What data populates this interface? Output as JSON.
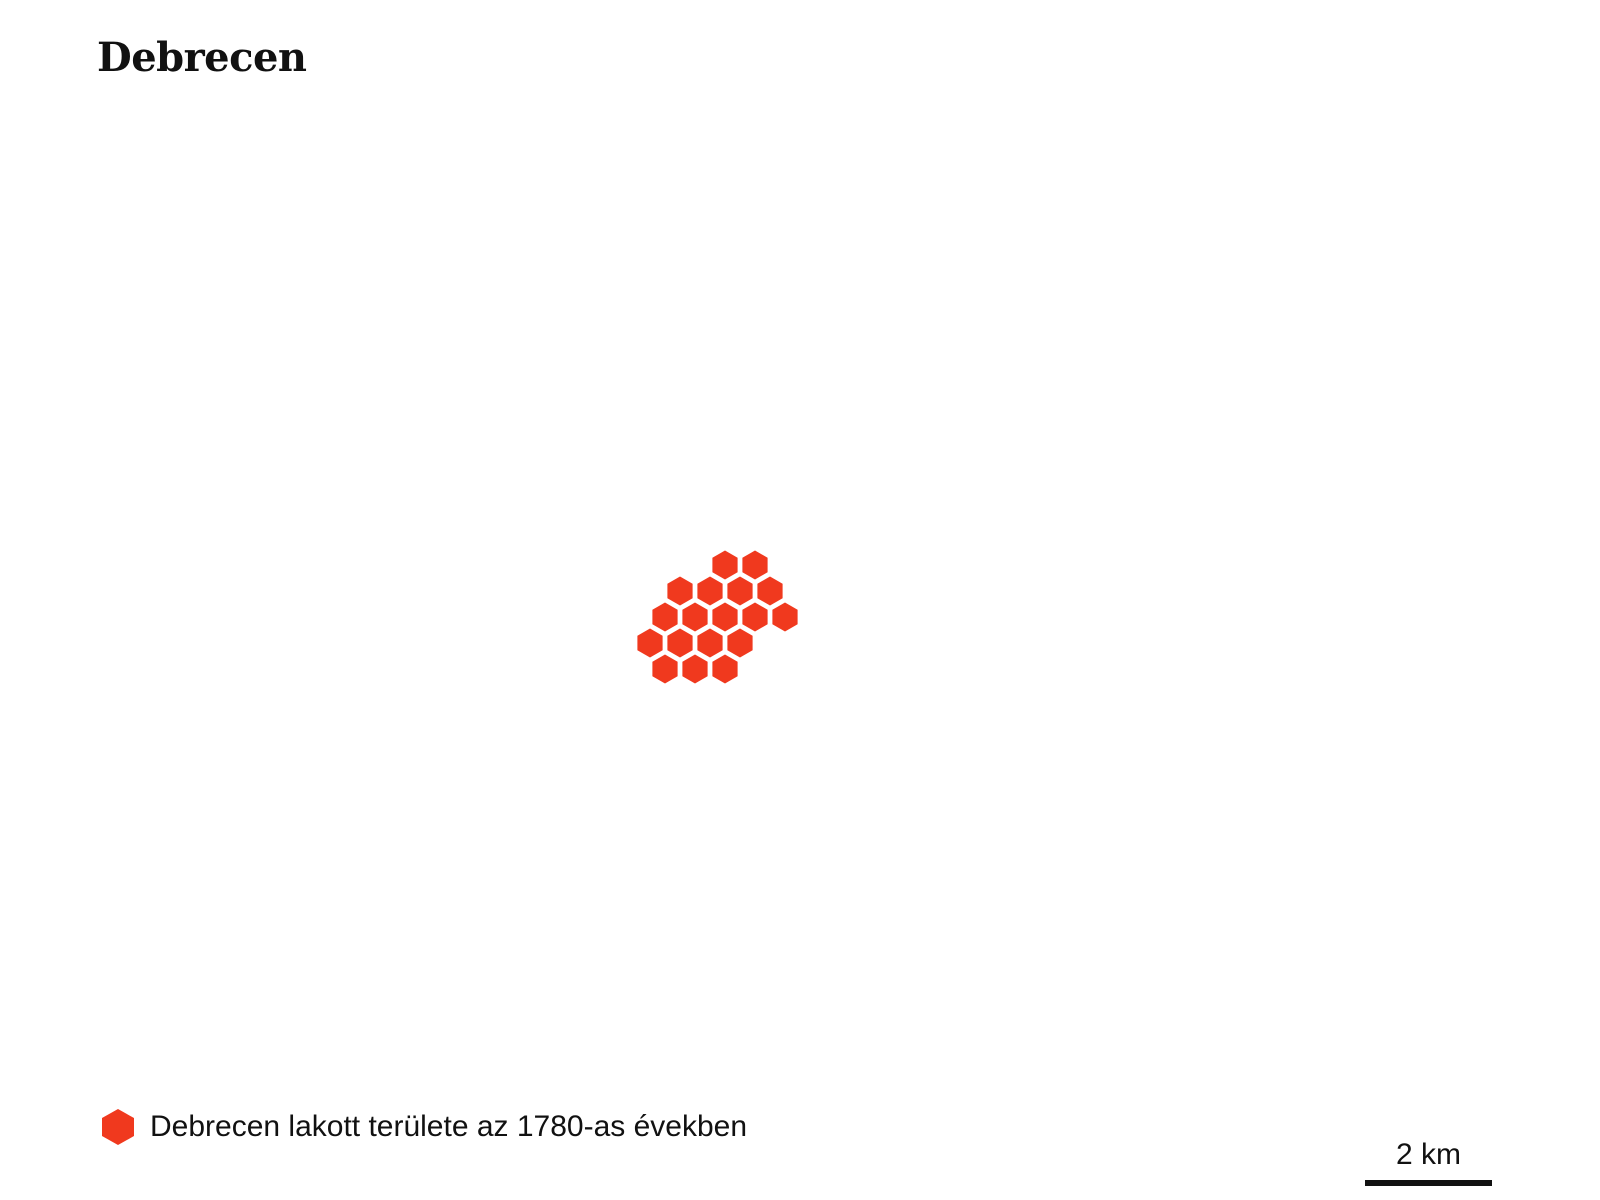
{
  "title": "Debrecen",
  "legend": {
    "label": "Debrecen lakott területe az 1780-as években",
    "icon": "hexagon-icon",
    "color": "#f0391e"
  },
  "scale": {
    "label": "2 km"
  },
  "map": {
    "settlement_cells": [
      {
        "q": 0,
        "r": 0
      },
      {
        "q": 1,
        "r": 0
      },
      {
        "q": -1,
        "r": 1
      },
      {
        "q": 0,
        "r": 1
      },
      {
        "q": 1,
        "r": 1
      },
      {
        "q": 2,
        "r": 1
      },
      {
        "q": -2,
        "r": 2
      },
      {
        "q": -1,
        "r": 2
      },
      {
        "q": 0,
        "r": 2
      },
      {
        "q": 1,
        "r": 2
      },
      {
        "q": 2,
        "r": 2
      },
      {
        "q": -2,
        "r": 3
      },
      {
        "q": -1,
        "r": 3
      },
      {
        "q": 0,
        "r": 3
      },
      {
        "q": 1,
        "r": 3
      },
      {
        "q": -2,
        "r": 4
      },
      {
        "q": -1,
        "r": 4
      },
      {
        "q": 0,
        "r": 4
      }
    ]
  }
}
